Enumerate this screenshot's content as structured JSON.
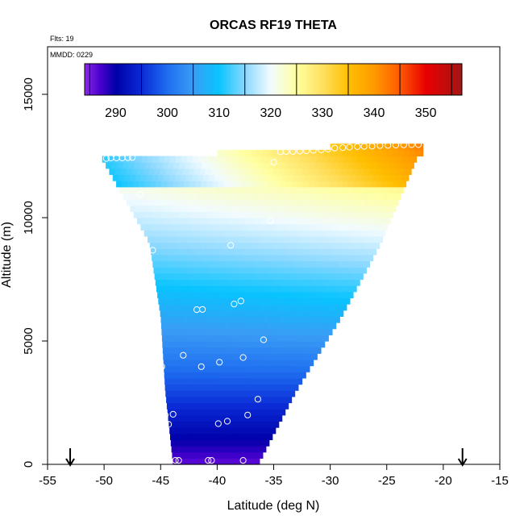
{
  "chart_data": {
    "type": "heatmap",
    "title": "ORCAS RF19 THETA",
    "subtitle_flights": "Flts: 19",
    "subtitle_date": "MMDD: 0229",
    "xlabel": "Latitude (deg N)",
    "ylabel": "Altitude (m)",
    "xlim": [
      -55,
      -15
    ],
    "ylim": [
      0,
      15000
    ],
    "x_ticks": [
      -55,
      -50,
      -45,
      -40,
      -35,
      -30,
      -25,
      -20,
      -15
    ],
    "y_ticks": [
      0,
      5000,
      10000,
      15000
    ],
    "colorbar": {
      "range": [
        284,
        357
      ],
      "ticks": [
        290,
        300,
        310,
        320,
        330,
        340,
        350
      ],
      "stops": [
        {
          "v": 284,
          "c": "#8a2be2"
        },
        {
          "v": 287,
          "c": "#4b00d0"
        },
        {
          "v": 290,
          "c": "#0000a8"
        },
        {
          "v": 295,
          "c": "#0a2ad6"
        },
        {
          "v": 300,
          "c": "#1f6ef0"
        },
        {
          "v": 305,
          "c": "#3a9cf5"
        },
        {
          "v": 310,
          "c": "#08c4ff"
        },
        {
          "v": 315,
          "c": "#8ad8ff"
        },
        {
          "v": 320,
          "c": "#f2fbff"
        },
        {
          "v": 325,
          "c": "#ffffa0"
        },
        {
          "v": 330,
          "c": "#ffe060"
        },
        {
          "v": 335,
          "c": "#ffbf00"
        },
        {
          "v": 340,
          "c": "#ff9a00"
        },
        {
          "v": 345,
          "c": "#ff5a00"
        },
        {
          "v": 350,
          "c": "#e80000"
        },
        {
          "v": 357,
          "c": "#a51515"
        }
      ]
    },
    "arrows_at_latitude": [
      -53,
      -18.3
    ],
    "field_left_edge": [
      [
        -50.2,
        12400
      ],
      [
        -46,
        9000
      ],
      [
        -45,
        6000
      ],
      [
        -44.6,
        3000
      ],
      [
        -43.9,
        0
      ]
    ],
    "field_right_edge": [
      [
        -36.4,
        0
      ],
      [
        -33,
        3000
      ],
      [
        -29,
        6000
      ],
      [
        -25.5,
        9000
      ],
      [
        -21.8,
        13000
      ]
    ],
    "flight_track_points": [
      [
        -49.8,
        12400
      ],
      [
        -49.4,
        12420
      ],
      [
        -48.9,
        12420
      ],
      [
        -48.4,
        12420
      ],
      [
        -47.9,
        12430
      ],
      [
        -47.5,
        12440
      ],
      [
        -46.8,
        10950
      ],
      [
        -45.7,
        8680
      ],
      [
        -45.5,
        6330
      ],
      [
        -44.9,
        3960
      ],
      [
        -44.6,
        2000
      ],
      [
        -44.3,
        1620
      ],
      [
        -43.7,
        160
      ],
      [
        -43.4,
        160
      ],
      [
        -40.8,
        160
      ],
      [
        -40.5,
        160
      ],
      [
        -37.7,
        160
      ],
      [
        -43.9,
        2030
      ],
      [
        -43.0,
        4420
      ],
      [
        -41.8,
        6270
      ],
      [
        -41.3,
        6280
      ],
      [
        -41.4,
        3960
      ],
      [
        -39.8,
        4140
      ],
      [
        -39.1,
        1750
      ],
      [
        -39.9,
        1650
      ],
      [
        -37.7,
        4330
      ],
      [
        -37.9,
        6620
      ],
      [
        -38.5,
        6500
      ],
      [
        -38.8,
        8880
      ],
      [
        -37.3,
        2000
      ],
      [
        -36.4,
        2640
      ],
      [
        -35.9,
        5050
      ],
      [
        -35.3,
        9880
      ],
      [
        -35.0,
        12250
      ],
      [
        -34.4,
        12670
      ],
      [
        -33.9,
        12680
      ],
      [
        -33.3,
        12680
      ],
      [
        -32.7,
        12700
      ],
      [
        -32.1,
        12710
      ],
      [
        -31.5,
        12730
      ],
      [
        -30.8,
        12750
      ],
      [
        -30.2,
        12780
      ],
      [
        -29.6,
        12820
      ],
      [
        -28.9,
        12840
      ],
      [
        -28.3,
        12860
      ],
      [
        -27.6,
        12880
      ],
      [
        -27.0,
        12890
      ],
      [
        -26.3,
        12900
      ],
      [
        -25.6,
        12920
      ],
      [
        -24.9,
        12930
      ],
      [
        -24.2,
        12940
      ],
      [
        -23.5,
        12950
      ],
      [
        -22.8,
        12960
      ],
      [
        -22.2,
        12960
      ]
    ]
  }
}
